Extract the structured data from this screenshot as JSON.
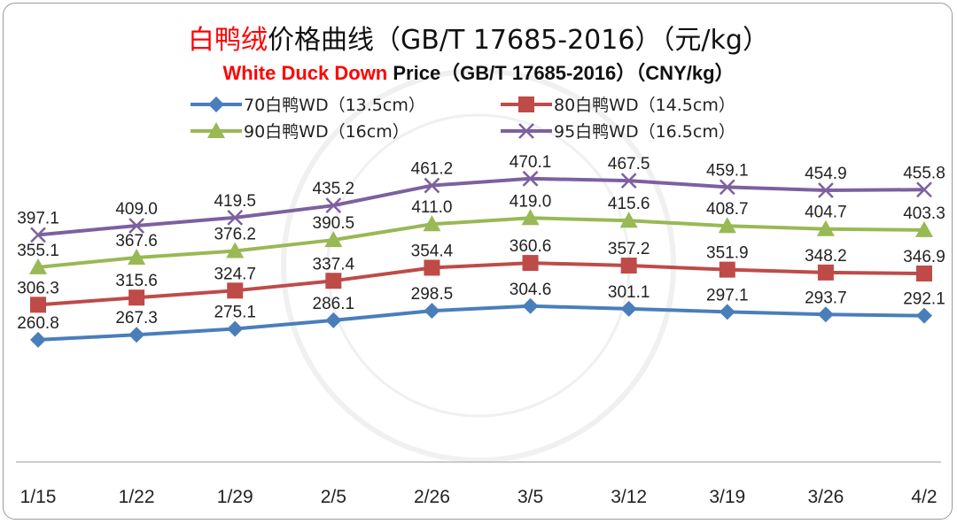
{
  "chart_data": {
    "type": "line",
    "title": {
      "red": "白鸭绒",
      "black": "价格曲线（GB/T 17685-2016）（元/kg）"
    },
    "subtitle": {
      "red": "White Duck Down",
      "black": " Price（GB/T 17685-2016）（CNY/kg）"
    },
    "xlabel": "",
    "ylabel": "",
    "categories": [
      "1/15",
      "1/22",
      "1/29",
      "2/5",
      "2/26",
      "3/5",
      "3/12",
      "3/19",
      "3/26",
      "4/2"
    ],
    "ylim": [
      100,
      700
    ],
    "grid": false,
    "legend_position": "top",
    "series": [
      {
        "name": "70白鸭WD（13.5cm）",
        "color": "#4a7ebb",
        "marker": "diamond",
        "values": [
          260.8,
          267.3,
          275.1,
          286.1,
          298.5,
          304.6,
          301.1,
          297.1,
          293.7,
          292.1
        ]
      },
      {
        "name": "80白鸭WD（14.5cm）",
        "color": "#be4b48",
        "marker": "square",
        "values": [
          306.3,
          315.6,
          324.7,
          337.4,
          354.4,
          360.6,
          357.2,
          351.9,
          348.2,
          346.9
        ]
      },
      {
        "name": "90白鸭WD（16cm）",
        "color": "#98b954",
        "marker": "triangle",
        "values": [
          355.1,
          367.6,
          376.2,
          390.5,
          411.0,
          419.0,
          415.6,
          408.7,
          404.7,
          403.3
        ]
      },
      {
        "name": "95白鸭WD（16.5cm）",
        "color": "#7d60a0",
        "marker": "x",
        "values": [
          397.1,
          409.0,
          419.5,
          435.2,
          461.2,
          470.1,
          467.5,
          459.1,
          454.9,
          455.8
        ]
      }
    ]
  }
}
